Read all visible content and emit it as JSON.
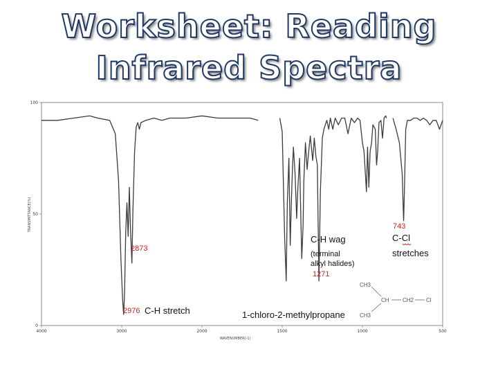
{
  "title_lines": [
    "Worksheet: Reading",
    "Infrared Spectra"
  ],
  "chart_data": {
    "type": "line",
    "xlabel": "WAVENUMBER(-1)",
    "ylabel": "TRANSMITTANCE(%)",
    "xlim": [
      4000,
      500
    ],
    "ylim": [
      0,
      100
    ],
    "x_ticks": [
      "4000",
      "3000",
      "2000",
      "1500",
      "1000",
      "500"
    ],
    "y_ticks": [
      "100",
      "50",
      "0"
    ],
    "colors": {
      "line": "#3a3a3a",
      "annotation_red": "#cc1f1f"
    },
    "series": [
      {
        "values": [
          [
            4000,
            92
          ],
          [
            3800,
            92
          ],
          [
            3600,
            93
          ],
          [
            3400,
            94
          ],
          [
            3300,
            93
          ],
          [
            3150,
            92
          ],
          [
            3080,
            86
          ],
          [
            3040,
            65
          ],
          [
            3010,
            30
          ],
          [
            2990,
            12
          ],
          [
            2976,
            5
          ],
          [
            2965,
            15
          ],
          [
            2950,
            42
          ],
          [
            2935,
            55
          ],
          [
            2920,
            40
          ],
          [
            2905,
            62
          ],
          [
            2890,
            42
          ],
          [
            2873,
            28
          ],
          [
            2860,
            52
          ],
          [
            2840,
            78
          ],
          [
            2820,
            89
          ],
          [
            2800,
            91
          ],
          [
            2780,
            88
          ],
          [
            2760,
            91
          ],
          [
            2700,
            92
          ],
          [
            2600,
            93
          ],
          [
            2500,
            92
          ],
          [
            2400,
            93
          ],
          [
            2200,
            93
          ],
          [
            2000,
            94
          ],
          [
            1900,
            93
          ],
          [
            1800,
            93
          ],
          [
            1700,
            93
          ],
          [
            1650,
            92
          ]
        ]
      },
      {
        "values": [
          [
            1515,
            93
          ],
          [
            1500,
            87
          ],
          [
            1485,
            40
          ],
          [
            1475,
            20
          ],
          [
            1468,
            55
          ],
          [
            1458,
            75
          ],
          [
            1450,
            36
          ],
          [
            1443,
            55
          ],
          [
            1436,
            70
          ],
          [
            1430,
            80
          ],
          [
            1420,
            68
          ],
          [
            1410,
            48
          ],
          [
            1402,
            62
          ],
          [
            1392,
            75
          ],
          [
            1385,
            52
          ],
          [
            1378,
            30
          ],
          [
            1370,
            45
          ],
          [
            1365,
            65
          ],
          [
            1355,
            82
          ],
          [
            1345,
            70
          ],
          [
            1335,
            78
          ],
          [
            1325,
            85
          ],
          [
            1310,
            74
          ],
          [
            1300,
            84
          ],
          [
            1290,
            76
          ],
          [
            1281,
            72
          ],
          [
            1271,
            20
          ],
          [
            1262,
            60
          ],
          [
            1250,
            84
          ],
          [
            1240,
            88
          ],
          [
            1222,
            92
          ],
          [
            1210,
            88
          ],
          [
            1200,
            93
          ],
          [
            1185,
            88
          ],
          [
            1170,
            93
          ],
          [
            1150,
            90
          ],
          [
            1130,
            93
          ],
          [
            1110,
            93
          ],
          [
            1090,
            86
          ],
          [
            1070,
            93
          ],
          [
            1050,
            91
          ],
          [
            1030,
            93
          ],
          [
            1015,
            92
          ],
          [
            1000,
            82
          ],
          [
            990,
            78
          ],
          [
            975,
            60
          ],
          [
            968,
            80
          ],
          [
            960,
            62
          ],
          [
            952,
            78
          ],
          [
            943,
            82
          ],
          [
            935,
            90
          ],
          [
            920,
            88
          ],
          [
            912,
            72
          ],
          [
            905,
            78
          ],
          [
            897,
            91
          ],
          [
            885,
            92
          ],
          [
            875,
            84
          ],
          [
            865,
            93
          ],
          [
            855,
            94
          ],
          [
            850,
            93
          ]
        ]
      },
      {
        "values": [
          [
            810,
            93
          ],
          [
            790,
            88
          ],
          [
            770,
            82
          ],
          [
            752,
            68
          ],
          [
            745,
            50
          ],
          [
            743,
            47
          ],
          [
            738,
            62
          ],
          [
            730,
            88
          ],
          [
            720,
            92
          ],
          [
            700,
            92
          ],
          [
            680,
            93
          ],
          [
            660,
            93
          ],
          [
            640,
            92
          ],
          [
            620,
            93
          ],
          [
            600,
            92
          ],
          [
            580,
            90
          ],
          [
            560,
            92
          ],
          [
            540,
            92
          ],
          [
            520,
            88
          ],
          [
            500,
            92
          ]
        ]
      }
    ],
    "annotations": {
      "a2873": "2873",
      "a2976": "2976",
      "ch_stretch": "C-H stretch",
      "chwag": "C-H  wag",
      "terminal": "(terminal",
      "alkyl": "alkyl halides)",
      "a1271": "1271",
      "a743": "743",
      "ccl": "C-Cl",
      "stretches": "stretches",
      "compound": "1-chloro-2-methylpropane"
    },
    "molecule": {
      "ch3_top": "CH3",
      "ch": "CH",
      "ch2": "CH2",
      "cl": "Cl",
      "ch3_bottom": "CH3"
    }
  }
}
